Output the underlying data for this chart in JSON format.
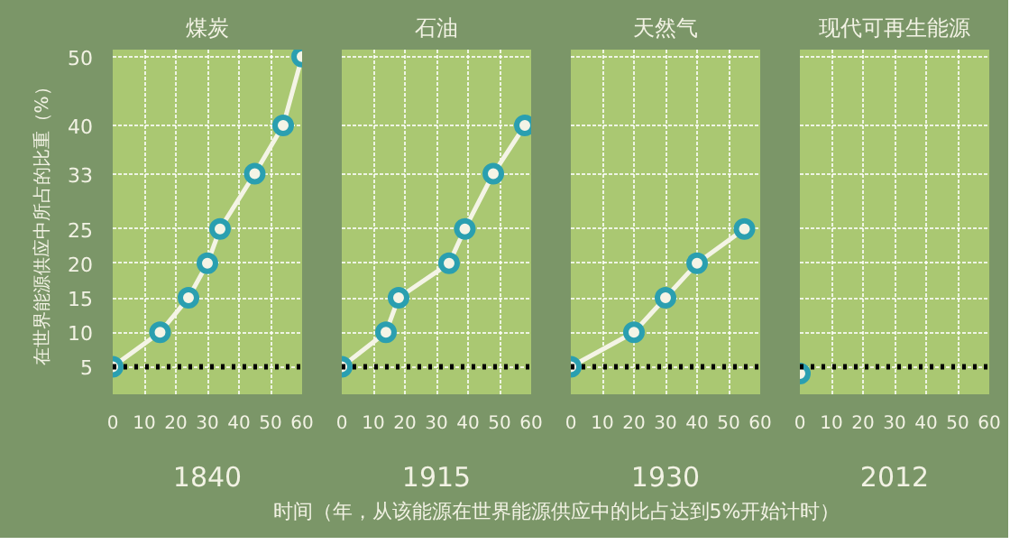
{
  "chart_data": [
    {
      "type": "line",
      "title": "煤炭",
      "ylabel": "在世界能源供应中所占的比重（%）",
      "xlabel": "时间（年，从该能源在世界能源供应中的比占达到5%开始计时）",
      "annotations": [
        "1840"
      ],
      "x": [
        0,
        15,
        24,
        30,
        34,
        45,
        54,
        60
      ],
      "series": [
        {
          "color": "#f4f4e6",
          "values": [
            5,
            10,
            15,
            20,
            25,
            33,
            40,
            50
          ]
        }
      ],
      "xlim": [
        0,
        60
      ],
      "xticks": [
        0,
        10,
        20,
        30,
        40,
        50,
        60
      ],
      "ylim": [
        1,
        51
      ],
      "yticks": [
        5,
        10,
        15,
        20,
        25,
        33,
        40,
        50
      ],
      "grid": true,
      "marker": "circle",
      "line_style": "solid",
      "ref_lines": [
        {
          "axis": "y",
          "value": 5,
          "color": "#000000",
          "line_style": "dotted"
        }
      ]
    },
    {
      "type": "line",
      "title": "石油",
      "annotations": [
        "1915"
      ],
      "x": [
        0,
        14,
        18,
        34,
        39,
        48,
        58
      ],
      "series": [
        {
          "color": "#f4f4e6",
          "values": [
            5,
            10,
            15,
            20,
            25,
            33,
            40
          ]
        }
      ],
      "xlim": [
        0,
        60
      ],
      "xticks": [
        0,
        10,
        20,
        30,
        40,
        50,
        60
      ],
      "ylim": [
        1,
        51
      ],
      "yticks": [
        5,
        10,
        15,
        20,
        25,
        33,
        40,
        50
      ],
      "grid": true,
      "marker": "circle",
      "line_style": "solid",
      "tick_labels": "x",
      "ref_lines": [
        {
          "axis": "y",
          "value": 5,
          "color": "#000000",
          "line_style": "dotted"
        }
      ]
    },
    {
      "type": "line",
      "title": "天然气",
      "annotations": [
        "1930"
      ],
      "x": [
        0,
        20,
        30,
        40,
        55
      ],
      "series": [
        {
          "color": "#f4f4e6",
          "values": [
            5,
            10,
            15,
            20,
            25
          ]
        }
      ],
      "xlim": [
        0,
        60
      ],
      "xticks": [
        0,
        10,
        20,
        30,
        40,
        50,
        60
      ],
      "ylim": [
        1,
        51
      ],
      "yticks": [
        5,
        10,
        15,
        20,
        25,
        33,
        40,
        50
      ],
      "grid": true,
      "marker": "circle",
      "line_style": "solid",
      "tick_labels": "x",
      "ref_lines": [
        {
          "axis": "y",
          "value": 5,
          "color": "#000000",
          "line_style": "dotted"
        }
      ]
    },
    {
      "type": "line",
      "title": "现代可再生能源",
      "annotations": [
        "2012"
      ],
      "x": [
        0
      ],
      "series": [
        {
          "color": "#f4f4e6",
          "values": [
            4
          ]
        }
      ],
      "xlim": [
        0,
        60
      ],
      "xticks": [
        0,
        10,
        20,
        30,
        40,
        50,
        60
      ],
      "ylim": [
        1,
        51
      ],
      "yticks": [
        5,
        10,
        15,
        20,
        25,
        33,
        40,
        50
      ],
      "grid": true,
      "marker": "circle",
      "line_style": "solid",
      "tick_labels": "x",
      "ref_lines": [
        {
          "axis": "y",
          "value": 5,
          "color": "#000000",
          "line_style": "dotted"
        }
      ]
    }
  ]
}
